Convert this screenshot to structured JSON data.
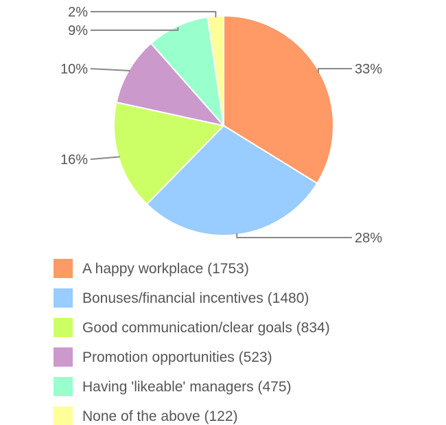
{
  "chart_data": {
    "type": "pie",
    "title": "",
    "legend_position": "bottom",
    "slices": [
      {
        "name": "A happy workplace",
        "value": 1753,
        "color": "#ff9966",
        "legend": "A happy workplace (1753)",
        "pct_label": "33%"
      },
      {
        "name": "Bonuses/financial incentives",
        "value": 1480,
        "color": "#99ccff",
        "legend": "Bonuses/financial incentives (1480)",
        "pct_label": "28%"
      },
      {
        "name": "Good communication/clear goals",
        "value": 834,
        "color": "#ccff66",
        "legend": "Good communication/clear goals (834)",
        "pct_label": "16%"
      },
      {
        "name": "Promotion opportunities",
        "value": 523,
        "color": "#cc99cc",
        "legend": "Promotion opportunities (523)",
        "pct_label": "10%"
      },
      {
        "name": "Having 'likeable' managers",
        "value": 475,
        "color": "#99ffcc",
        "legend": "Having 'likeable' managers (475)",
        "pct_label": "9%"
      },
      {
        "name": "None of the above",
        "value": 122,
        "color": "#ffff99",
        "legend": "None of the above (122)",
        "pct_label": "2%"
      }
    ]
  }
}
